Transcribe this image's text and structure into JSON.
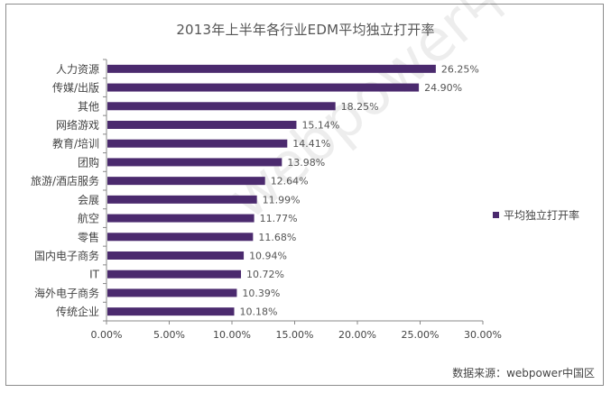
{
  "chart_data": {
    "type": "bar",
    "orientation": "horizontal",
    "title": "2013年上半年各行业EDM平均独立打开率",
    "categories": [
      "人力资源",
      "传媒/出版",
      "其他",
      "网络游戏",
      "教育/培训",
      "团购",
      "旅游/酒店服务",
      "会展",
      "航空",
      "零售",
      "国内电子商务",
      "IT",
      "海外电子商务",
      "传统企业"
    ],
    "values": [
      26.25,
      24.9,
      18.25,
      15.14,
      14.41,
      13.98,
      12.64,
      11.99,
      11.77,
      11.68,
      10.94,
      10.72,
      10.39,
      10.18
    ],
    "value_labels": [
      "26.25%",
      "24.90%",
      "18.25%",
      "15.14%",
      "14.41%",
      "13.98%",
      "12.64%",
      "11.99%",
      "11.77%",
      "11.68%",
      "10.94%",
      "10.72%",
      "10.39%",
      "10.18%"
    ],
    "series": [
      {
        "name": "平均独立打开率",
        "color": "#4b2a6e"
      }
    ],
    "xlim": [
      0,
      30
    ],
    "x_ticks": [
      "0.00%",
      "5.00%",
      "10.00%",
      "15.00%",
      "20.00%",
      "25.00%",
      "30.00%"
    ],
    "legend_position": "right",
    "grid": false
  },
  "source": "数据来源：webpower中国区",
  "watermark": "webpower中国区"
}
